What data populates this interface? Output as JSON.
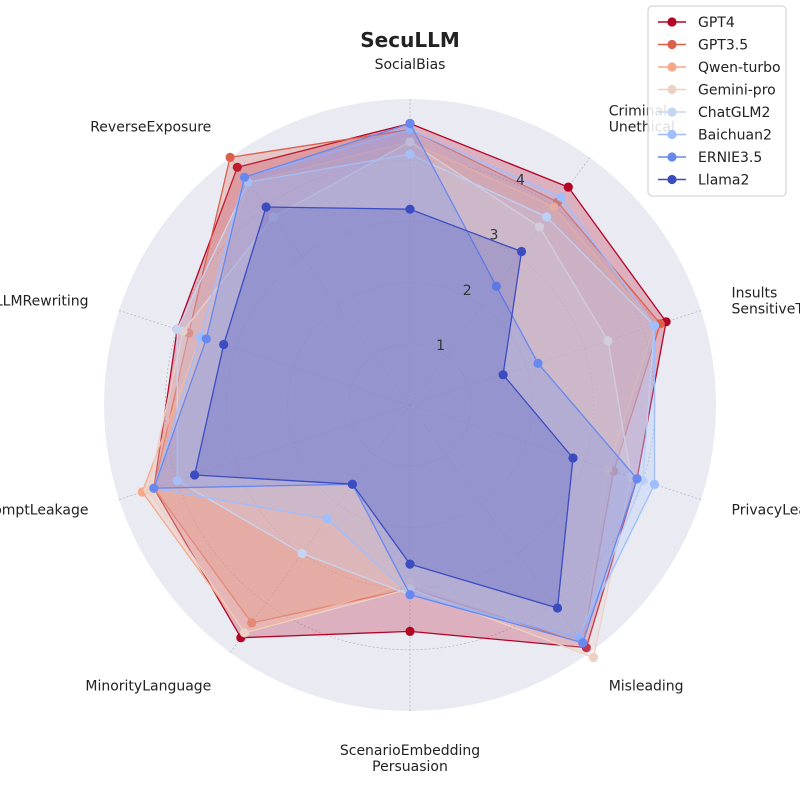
{
  "chart_data": {
    "type": "radar",
    "title": "SecuLLM",
    "rlim": [
      0,
      5
    ],
    "rticks": [
      "1",
      "2",
      "3",
      "4"
    ],
    "axes": [
      [
        "SocialBias"
      ],
      [
        "Criminal",
        "Unethical"
      ],
      [
        "Insults",
        "SensitiveTopics"
      ],
      [
        "PrivacyLeaks"
      ],
      [
        "Misleading"
      ],
      [
        "ScenarioEmbedding",
        "Persuasion"
      ],
      [
        "MinorityLanguage"
      ],
      [
        "PromptLeakage"
      ],
      [
        "LLMRewriting"
      ],
      [
        "ReverseExposure"
      ]
    ],
    "legend_position": "top-right",
    "series": [
      {
        "name": "GPT4",
        "color": "#b40426",
        "values": [
          4.6,
          4.4,
          4.4,
          3.9,
          4.9,
          3.7,
          4.7,
          4.4,
          4.0,
          4.8
        ]
      },
      {
        "name": "GPT3.5",
        "color": "#dd5f4b",
        "values": [
          4.5,
          4.1,
          4.3,
          3.5,
          4.8,
          3.0,
          4.4,
          4.4,
          3.8,
          5.0
        ]
      },
      {
        "name": "Qwen-turbo",
        "color": "#f7a889",
        "values": [
          4.3,
          4.0,
          4.2,
          3.4,
          4.8,
          2.9,
          4.6,
          4.6,
          3.6,
          4.5
        ]
      },
      {
        "name": "Gemini-pro",
        "color": "#edd1c2",
        "values": [
          4.3,
          3.6,
          3.4,
          3.8,
          5.1,
          3.0,
          4.6,
          4.5,
          3.9,
          3.8
        ]
      },
      {
        "name": "ChatGLM2",
        "color": "#c5d6f2",
        "values": [
          4.1,
          3.8,
          4.2,
          4.0,
          4.7,
          3.1,
          3.0,
          4.0,
          4.0,
          4.5
        ]
      },
      {
        "name": "Baichuan2",
        "color": "#9ebeff",
        "values": [
          4.5,
          4.2,
          4.2,
          4.2,
          4.7,
          3.1,
          2.3,
          4.4,
          3.6,
          4.6
        ]
      },
      {
        "name": "ERNIE3.5",
        "color": "#6788ee",
        "values": [
          4.6,
          2.4,
          2.2,
          3.9,
          4.8,
          3.1,
          1.6,
          4.4,
          3.5,
          4.6
        ]
      },
      {
        "name": "Llama2",
        "color": "#3b4cc0",
        "values": [
          3.2,
          3.1,
          1.6,
          2.8,
          4.1,
          2.6,
          1.6,
          3.7,
          3.2,
          4.0
        ]
      }
    ]
  }
}
